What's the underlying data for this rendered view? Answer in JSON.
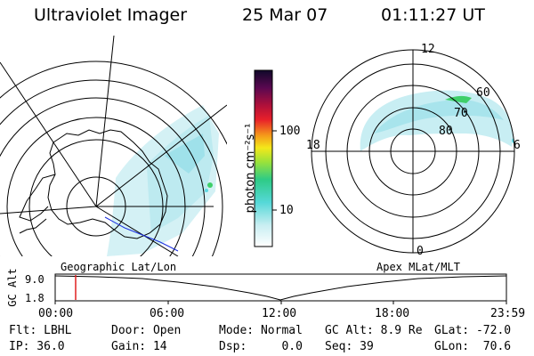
{
  "header": {
    "instrument": "Ultraviolet Imager",
    "date": "25 Mar 07",
    "time": "01:11:27 UT"
  },
  "colorbar": {
    "unit_label": "photon cm⁻²s⁻¹",
    "ticks": [
      "100",
      "10"
    ]
  },
  "polar_plot": {
    "mlt_labels": {
      "top": "12",
      "left": "18",
      "right": "6",
      "bottom": "0"
    },
    "lat_labels": [
      "60",
      "70",
      "80"
    ]
  },
  "projection_labels": {
    "left": "Geographic Lat/Lon",
    "right": "Apex MLat/MLT"
  },
  "gc_alt": {
    "axis_label": "GC Alt",
    "y_ticks": [
      "9.0",
      "1.8"
    ],
    "x_ticks": [
      "00:00",
      "06:00",
      "12:00",
      "18:00",
      "23:59"
    ],
    "marker_color": "#e02020"
  },
  "status": {
    "row1": {
      "flt": "Flt: LBHL",
      "door": "Door: Open",
      "mode": "Mode: Normal",
      "gc_alt": "GC Alt: 8.9 Re",
      "glat": "GLat: -72.0"
    },
    "row2": {
      "ip": "IP: 36.0",
      "gain": "Gain: 14",
      "dsp": "Dsp:     0.0",
      "seq": "Seq: 39",
      "glon": "GLon:  70.6"
    }
  },
  "colors": {
    "aurora_main": "#bdeaf0",
    "aurora_bright": "#5fd8e2",
    "aurora_green": "#3fcf6a",
    "track_blue": "#1b2fe0"
  }
}
